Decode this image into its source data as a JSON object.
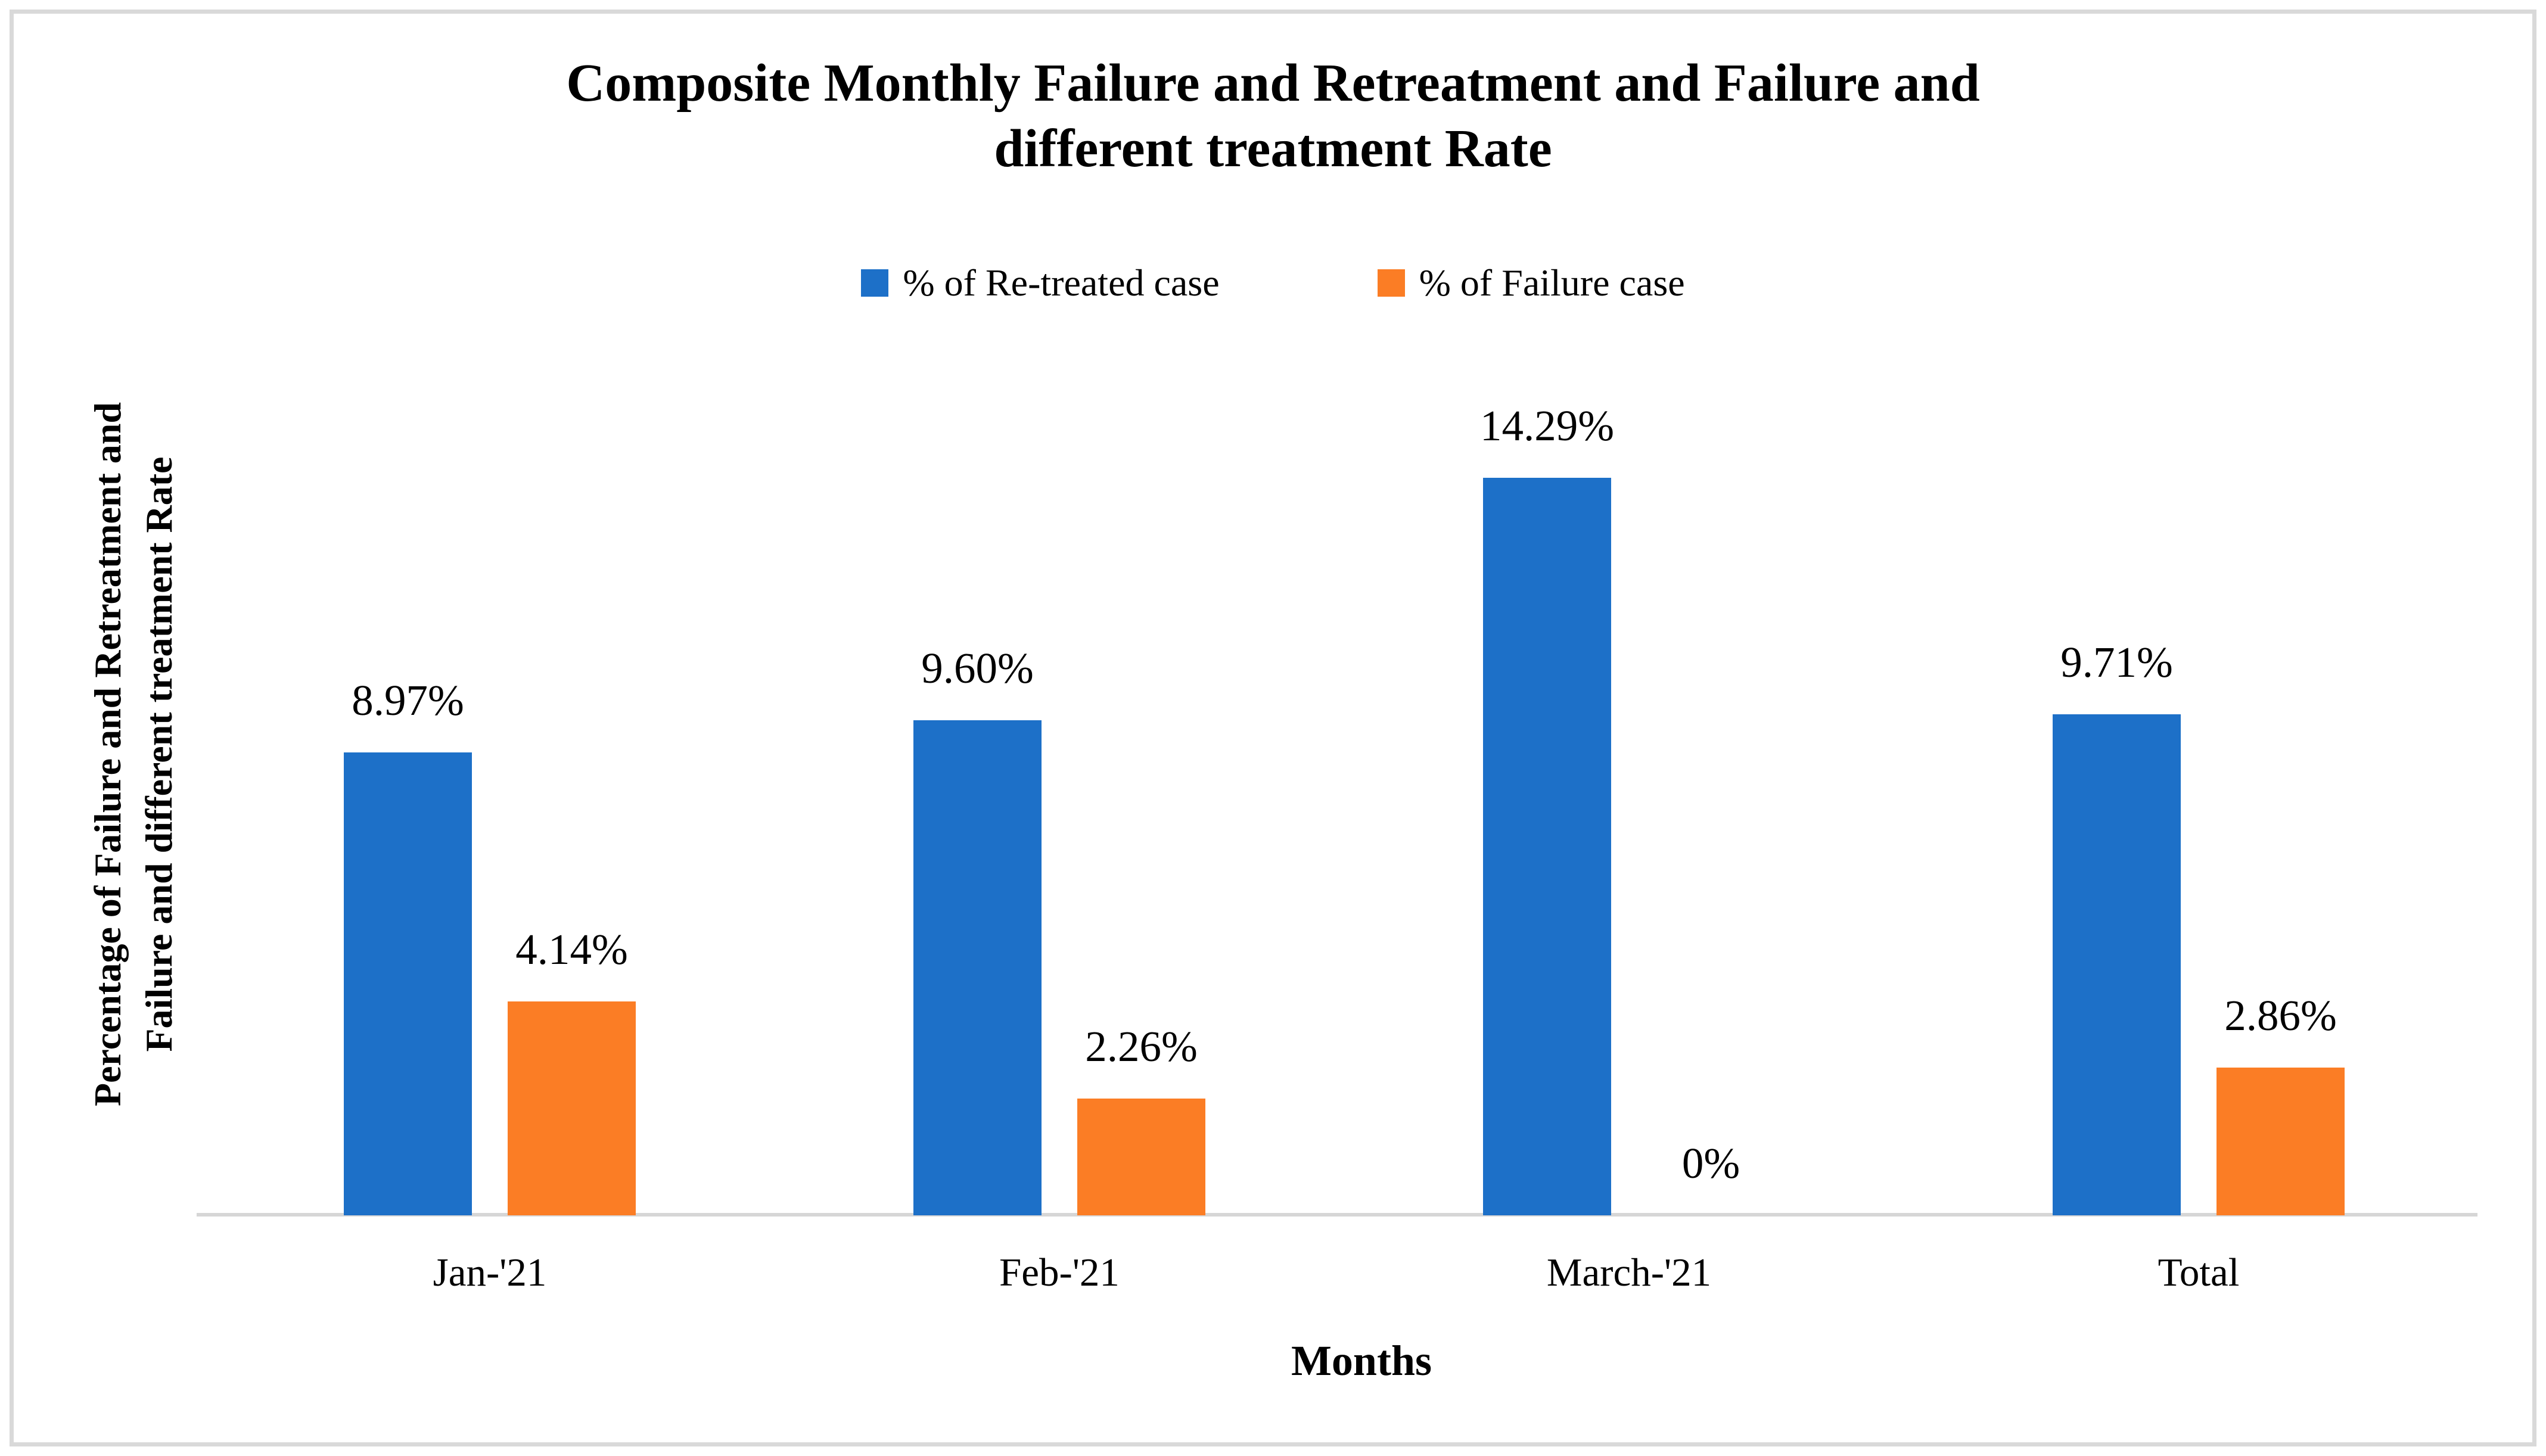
{
  "frame": {
    "border_color": "#d9d9d9"
  },
  "title": {
    "lines": [
      "Composite Monthly Failure and Retreatment and Failure and",
      "different treatment Rate"
    ]
  },
  "y_axis": {
    "title_lines": [
      "Percentage of Failure and Retreatment and",
      "Failure and different treatment Rate"
    ]
  },
  "x_axis": {
    "title": "Months"
  },
  "chart_data": {
    "type": "bar",
    "title": "Composite Monthly Failure and Retreatment and Failure and different treatment Rate",
    "xlabel": "Months",
    "ylabel": "Percentage of Failure and Retreatment and Failure and different treatment Rate",
    "categories": [
      "Jan-'21",
      "Feb-'21",
      "March-'21",
      "Total"
    ],
    "series": [
      {
        "name": "% of Re-treated case",
        "color": "#1d70c8",
        "values": [
          8.97,
          9.6,
          14.29,
          9.71
        ],
        "labels": [
          "8.97%",
          "9.60%",
          "14.29%",
          "9.71%"
        ]
      },
      {
        "name": "% of Failure case",
        "color": "#fb7d25",
        "values": [
          4.14,
          2.26,
          0,
          2.86
        ],
        "labels": [
          "4.14%",
          "2.26%",
          "0%",
          "2.86%"
        ]
      }
    ],
    "ylim": [
      0,
      15
    ],
    "grid": false,
    "legend_position": "top-center",
    "data_labels": true,
    "axis_line_color": "#d6d6d6"
  }
}
